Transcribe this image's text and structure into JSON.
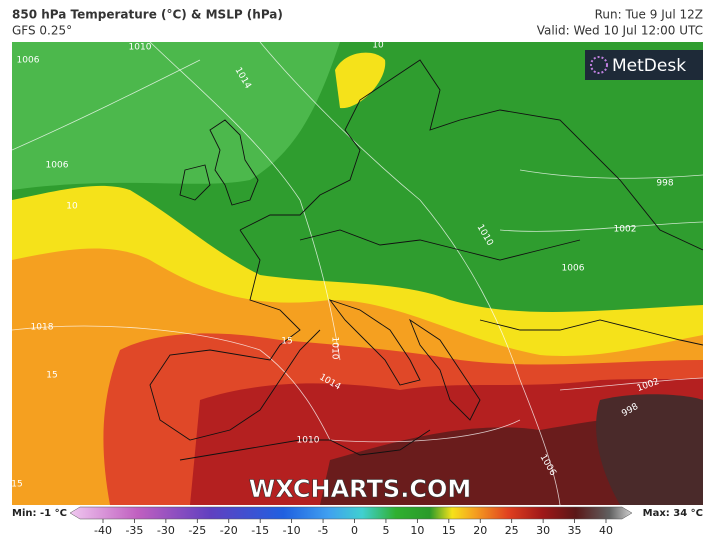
{
  "header": {
    "title": "850 hPa Temperature (°C) & MSLP (hPa)",
    "model": "GFS 0.25°",
    "run": "Run: Tue 9 Jul 12Z",
    "valid": "Valid: Wed 10 Jul 12:00 UTC"
  },
  "logo": "MetDesk",
  "watermark": "WXCHARTS.COM",
  "contour_labels": [
    1006,
    1010,
    10,
    1014,
    1006,
    10,
    998,
    1002,
    1006,
    1010,
    1018,
    15,
    1010,
    15,
    1014,
    1002,
    998,
    1010,
    1006,
    15
  ],
  "legend": {
    "min": "Min: -1 °C",
    "max": "Max: 34 °C",
    "ticks": [
      -40,
      -35,
      -30,
      -25,
      -20,
      -15,
      -10,
      -5,
      0,
      5,
      10,
      15,
      20,
      25,
      30,
      35,
      40
    ]
  }
}
